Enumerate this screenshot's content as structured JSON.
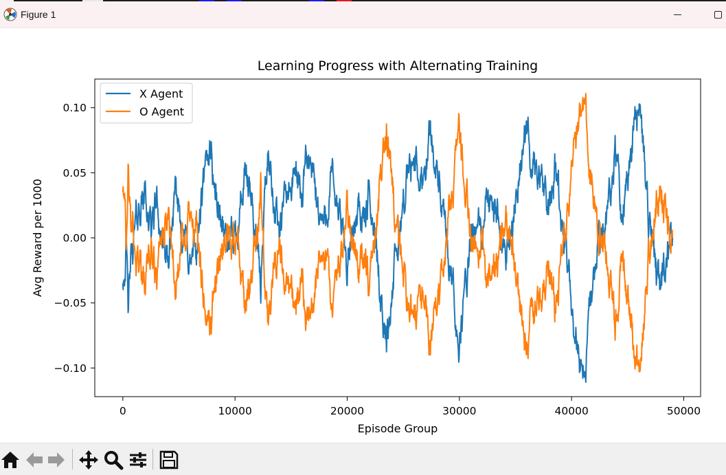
{
  "window": {
    "title": "Figure 1",
    "icons": {
      "app": "matplotlib-icon",
      "minimize": "minimize-icon",
      "maximize": "maximize-icon"
    }
  },
  "toolbar": {
    "buttons": [
      {
        "name": "home-button",
        "icon": "home-icon"
      },
      {
        "name": "back-button",
        "icon": "arrow-left-icon"
      },
      {
        "name": "forward-button",
        "icon": "arrow-right-icon"
      },
      {
        "name": "pan-button",
        "icon": "move-icon"
      },
      {
        "name": "zoom-button",
        "icon": "magnifier-icon"
      },
      {
        "name": "configure-subplots-button",
        "icon": "sliders-icon"
      },
      {
        "name": "save-button",
        "icon": "floppy-disk-icon"
      }
    ]
  },
  "chart_data": {
    "type": "line",
    "title": "Learning Progress with Alternating Training",
    "xlabel": "Episode Group",
    "ylabel": "Avg Reward per 1000",
    "xlim": [
      -2500,
      51500
    ],
    "ylim": [
      -0.122,
      0.122
    ],
    "xticks": [
      0,
      10000,
      20000,
      30000,
      40000,
      50000
    ],
    "xtick_labels": [
      "0",
      "10000",
      "20000",
      "30000",
      "40000",
      "50000"
    ],
    "yticks": [
      -0.1,
      -0.05,
      0.0,
      0.05,
      0.1
    ],
    "ytick_labels": [
      "−0.10",
      "−0.05",
      "0.00",
      "0.05",
      "0.10"
    ],
    "grid": false,
    "legend": "top-left",
    "x": [
      0,
      300,
      500,
      700,
      1000,
      1500,
      2000,
      2500,
      3000,
      3500,
      4000,
      4500,
      5000,
      5500,
      6000,
      6500,
      7000,
      7500,
      7800,
      8000,
      8500,
      9000,
      9500,
      10000,
      10500,
      11000,
      11500,
      12000,
      12300,
      12600,
      13000,
      13500,
      14000,
      14500,
      15000,
      15500,
      16000,
      16500,
      17000,
      17500,
      18000,
      18500,
      19000,
      19500,
      20000,
      20500,
      21000,
      21500,
      22000,
      22500,
      23000,
      23500,
      24000,
      24500,
      25000,
      25500,
      26000,
      26500,
      27000,
      27500,
      28000,
      28500,
      29000,
      29500,
      30000,
      30500,
      31000,
      31500,
      32000,
      32500,
      33000,
      33500,
      34000,
      34500,
      35000,
      35500,
      36000,
      36500,
      37000,
      37500,
      38000,
      38500,
      39000,
      39500,
      40000,
      40500,
      41000,
      41300,
      41500,
      42000,
      42500,
      43000,
      43500,
      44000,
      44500,
      45000,
      45500,
      46000,
      46500,
      47000,
      47500,
      48000,
      48500,
      49000
    ],
    "series": [
      {
        "name": "X Agent",
        "color": "#1f77b4",
        "values": [
          -0.03,
          -0.005,
          -0.06,
          -0.02,
          0.0,
          0.025,
          0.035,
          0.005,
          0.03,
          0.0,
          -0.03,
          0.02,
          0.025,
          0.0,
          -0.02,
          -0.015,
          0.025,
          0.05,
          0.08,
          0.055,
          0.02,
          0.01,
          -0.01,
          0.0,
          0.03,
          0.045,
          0.02,
          0.0,
          -0.045,
          0.03,
          0.065,
          0.03,
          0.0,
          0.03,
          0.04,
          0.05,
          0.03,
          0.06,
          0.04,
          0.02,
          0.01,
          0.045,
          0.03,
          0.005,
          -0.02,
          0.0,
          0.03,
          0.01,
          0.03,
          0.0,
          -0.04,
          -0.08,
          -0.04,
          -0.01,
          0.03,
          0.05,
          0.06,
          0.04,
          0.06,
          0.085,
          0.05,
          0.02,
          -0.02,
          -0.05,
          -0.08,
          -0.04,
          -0.01,
          0.01,
          0.0,
          0.03,
          0.01,
          0.02,
          -0.01,
          0.0,
          0.03,
          0.06,
          0.08,
          0.06,
          0.055,
          0.03,
          0.02,
          0.05,
          0.02,
          -0.02,
          -0.05,
          -0.08,
          -0.105,
          -0.09,
          -0.06,
          -0.03,
          -0.01,
          0.01,
          0.04,
          0.06,
          0.02,
          0.06,
          0.09,
          0.105,
          0.06,
          0.0,
          -0.03,
          -0.04,
          -0.02,
          0.0
        ]
      },
      {
        "name": "O Agent",
        "color": "#ff7f0e",
        "values": [
          0.03,
          0.0,
          0.06,
          0.02,
          0.0,
          -0.025,
          -0.035,
          -0.005,
          -0.03,
          0.0,
          0.03,
          -0.02,
          -0.025,
          0.0,
          0.02,
          0.015,
          -0.025,
          -0.05,
          -0.08,
          -0.055,
          -0.02,
          -0.01,
          0.01,
          0.0,
          -0.03,
          -0.045,
          -0.02,
          0.0,
          0.045,
          -0.03,
          -0.065,
          -0.03,
          0.0,
          -0.03,
          -0.04,
          -0.05,
          -0.03,
          -0.06,
          -0.04,
          -0.02,
          -0.01,
          -0.045,
          -0.03,
          -0.005,
          0.02,
          0.0,
          -0.03,
          -0.01,
          -0.03,
          0.0,
          0.04,
          0.08,
          0.04,
          0.01,
          -0.03,
          -0.05,
          -0.06,
          -0.04,
          -0.06,
          -0.085,
          -0.05,
          -0.02,
          0.02,
          0.05,
          0.08,
          0.04,
          0.01,
          -0.01,
          0.0,
          -0.03,
          -0.01,
          -0.02,
          0.01,
          0.0,
          -0.03,
          -0.06,
          -0.08,
          -0.06,
          -0.055,
          -0.03,
          -0.02,
          -0.05,
          -0.02,
          0.02,
          0.05,
          0.08,
          0.105,
          0.09,
          0.06,
          0.03,
          0.01,
          -0.01,
          -0.04,
          -0.06,
          -0.02,
          -0.06,
          -0.09,
          -0.105,
          -0.06,
          0.0,
          0.03,
          0.04,
          0.02,
          0.0
        ]
      }
    ]
  }
}
